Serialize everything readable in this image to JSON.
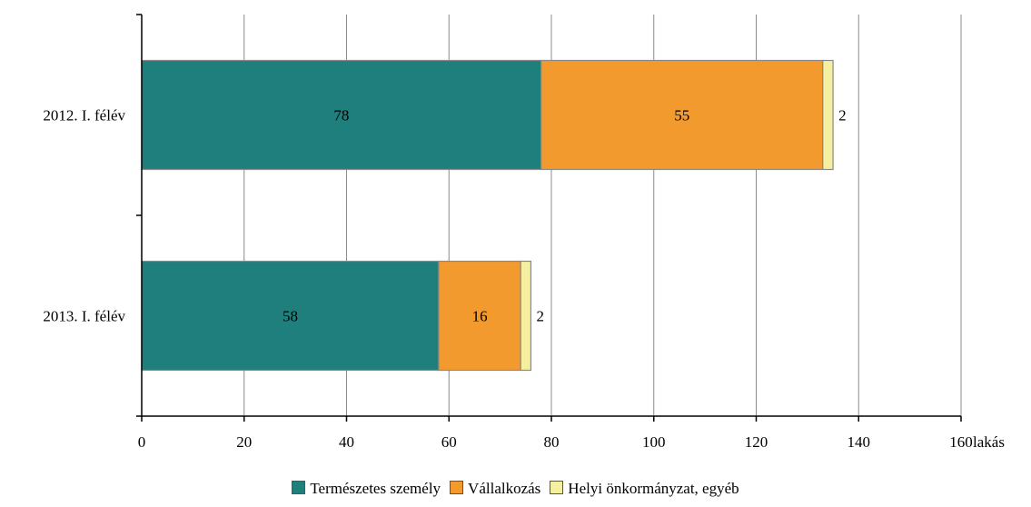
{
  "chart_data": {
    "type": "bar",
    "orientation": "horizontal",
    "stacked": true,
    "categories": [
      "2012. I. félév",
      "2013. I. félév"
    ],
    "series": [
      {
        "name": "Természetes személy",
        "values": [
          78,
          58
        ],
        "color": "#1f7f7c"
      },
      {
        "name": "Vállalkozás",
        "values": [
          55,
          16
        ],
        "color": "#f39a2e"
      },
      {
        "name": "Helyi önkormányzat, egyéb",
        "values": [
          2,
          2
        ],
        "color": "#f5f0a0"
      }
    ],
    "xlim": [
      0,
      160
    ],
    "x_ticks": [
      "0",
      "20",
      "40",
      "60",
      "80",
      "100",
      "120",
      "140",
      "160"
    ],
    "x_unit": "lakás",
    "grid": true,
    "legend_position": "bottom"
  }
}
